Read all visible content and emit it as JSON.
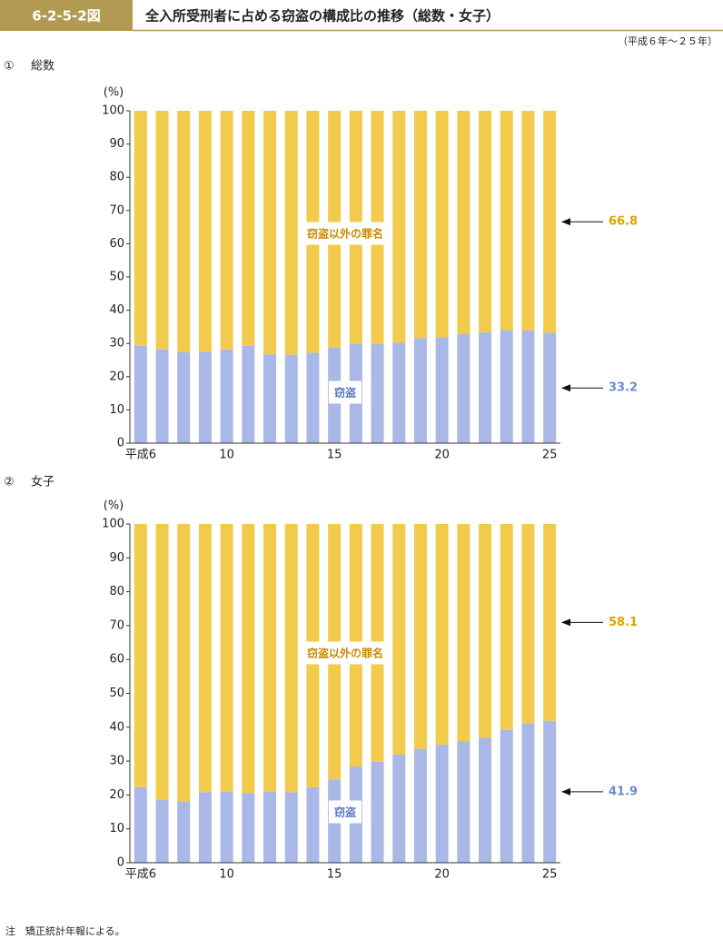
{
  "header": {
    "figure_id": "6-2-5-2図",
    "title": "全入所受刑者に占める窃盗の構成比の推移（総数・女子）",
    "period": "（平成６年～２５年）"
  },
  "note": "注　矯正統計年報による。",
  "chart_data": [
    {
      "type": "stacked-bar",
      "panel": "①",
      "title": "総数",
      "ylabel": "(%)",
      "categories": [
        "平成6",
        null,
        null,
        null,
        "10",
        null,
        null,
        null,
        null,
        "15",
        null,
        null,
        null,
        null,
        "20",
        null,
        null,
        null,
        null,
        "25"
      ],
      "ylim": [
        0,
        100
      ],
      "yticks": [
        0,
        10,
        20,
        30,
        40,
        50,
        60,
        70,
        80,
        90,
        100
      ],
      "series": [
        {
          "name": "窃盗",
          "color": "#a9b8e6",
          "values": [
            29.3,
            28.2,
            27.4,
            27.5,
            28.2,
            29.3,
            26.7,
            26.6,
            27.2,
            28.8,
            29.9,
            29.9,
            30.2,
            31.6,
            31.9,
            32.8,
            33.4,
            34.0,
            33.9,
            33.2
          ]
        },
        {
          "name": "窃盗以外の罪名",
          "color": "#f2cb4c",
          "values": [
            70.7,
            71.8,
            72.6,
            72.5,
            71.8,
            70.7,
            73.3,
            73.4,
            72.8,
            71.2,
            70.1,
            70.1,
            69.8,
            68.4,
            68.1,
            67.2,
            66.6,
            66.0,
            66.1,
            66.8
          ]
        }
      ]
    },
    {
      "type": "stacked-bar",
      "panel": "②",
      "title": "女子",
      "ylabel": "(%)",
      "categories": [
        "平成6",
        null,
        null,
        null,
        "10",
        null,
        null,
        null,
        null,
        "15",
        null,
        null,
        null,
        null,
        "20",
        null,
        null,
        null,
        null,
        "25"
      ],
      "ylim": [
        0,
        100
      ],
      "yticks": [
        0,
        10,
        20,
        30,
        40,
        50,
        60,
        70,
        80,
        90,
        100
      ],
      "series": [
        {
          "name": "窃盗",
          "color": "#a9b8e6",
          "values": [
            22.3,
            18.6,
            18.1,
            20.8,
            21.1,
            20.5,
            21.1,
            20.8,
            22.3,
            24.6,
            28.4,
            29.8,
            31.9,
            33.6,
            34.9,
            35.9,
            36.9,
            39.2,
            41.2,
            41.9
          ]
        },
        {
          "name": "窃盗以外の罪名",
          "color": "#f2cb4c",
          "values": [
            77.7,
            81.4,
            81.9,
            79.2,
            78.9,
            79.5,
            78.9,
            79.2,
            77.7,
            75.4,
            71.6,
            70.2,
            68.1,
            66.4,
            65.1,
            64.1,
            63.1,
            60.8,
            58.8,
            58.1
          ]
        }
      ]
    }
  ]
}
